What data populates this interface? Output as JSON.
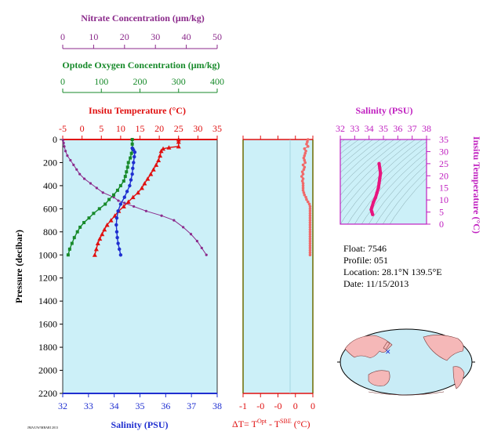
{
  "colors": {
    "nitrate": "#8b2a8b",
    "oxygen": "#178a2a",
    "temperature": "#e01010",
    "salinity": "#1f2fd0",
    "delta_t": "#f06a6a",
    "ts_curve": "#e8157f",
    "panel_bg": "#ccf0f8",
    "magenta_axis": "#c020c0",
    "olive_axis": "#6b6b00"
  },
  "texts": {
    "nitrate_title": "Nitrate Concentration (μm/kg)",
    "oxygen_title": "Optode Oxygen Concentration (μm/kg)",
    "temp_title": "Insitu Temperature (°C)",
    "salinity_bottom_title": "Salinity (PSU)",
    "pressure_title": "Pressure (decibar)",
    "ts_salinity_title": "Salinity (PSU)",
    "ts_temp_title": "Insitu Temperature (°C)",
    "delta_label": "ΔT= T",
    "delta_sup1": "Opt",
    "delta_mid": " - T",
    "delta_sup2": "SBE",
    "delta_unit": " (°C)",
    "small_credit": "JMA/UW/MBARI 2013"
  },
  "info": {
    "float": "Float:  7546",
    "profile": "Profile:  051",
    "location": "Location:  28.1°N  139.5°E",
    "date": "Date:  11/15/2013"
  },
  "chart_data": [
    {
      "type": "line",
      "name": "profiles",
      "pressure_ticks": [
        0,
        200,
        400,
        600,
        800,
        1000,
        1200,
        1400,
        1600,
        1800,
        2000,
        2200
      ],
      "pressure_range": [
        0,
        2200
      ],
      "nitrate_ticks": [
        0,
        10,
        20,
        30,
        40,
        50
      ],
      "nitrate_range": [
        0,
        50
      ],
      "oxygen_ticks": [
        0,
        100,
        200,
        300,
        400
      ],
      "oxygen_range": [
        0,
        400
      ],
      "temperature_ticks": [
        -5,
        0,
        5,
        10,
        15,
        20,
        25,
        30,
        35
      ],
      "temperature_range": [
        -5,
        35
      ],
      "salinity_ticks": [
        32,
        33,
        34,
        35,
        36,
        37,
        38
      ],
      "salinity_range": [
        32,
        38
      ],
      "series": [
        {
          "name": "nitrate",
          "points": [
            [
              0.1,
              5
            ],
            [
              0.3,
              30
            ],
            [
              0.5,
              60
            ],
            [
              0.9,
              100
            ],
            [
              1.5,
              140
            ],
            [
              2.5,
              180
            ],
            [
              3.5,
              220
            ],
            [
              4.5,
              260
            ],
            [
              5.5,
              300
            ],
            [
              7,
              340
            ],
            [
              9,
              380
            ],
            [
              11,
              420
            ],
            [
              13,
              460
            ],
            [
              16.5,
              500
            ],
            [
              18,
              530
            ],
            [
              20,
              550
            ],
            [
              23,
              580
            ],
            [
              27,
              620
            ],
            [
              32,
              660
            ],
            [
              36,
              700
            ],
            [
              39,
              760
            ],
            [
              41.5,
              820
            ],
            [
              43.5,
              880
            ],
            [
              45,
              940
            ],
            [
              46.5,
              1000
            ]
          ]
        },
        {
          "name": "oxygen",
          "points": [
            [
              180,
              0
            ],
            [
              180,
              40
            ],
            [
              181,
              80
            ],
            [
              178,
              120
            ],
            [
              175,
              160
            ],
            [
              170,
              200
            ],
            [
              168,
              240
            ],
            [
              165,
              280
            ],
            [
              162,
              320
            ],
            [
              158,
              360
            ],
            [
              150,
              400
            ],
            [
              142,
              440
            ],
            [
              132,
              480
            ],
            [
              120,
              520
            ],
            [
              110,
              560
            ],
            [
              95,
              600
            ],
            [
              80,
              640
            ],
            [
              68,
              680
            ],
            [
              55,
              720
            ],
            [
              45,
              760
            ],
            [
              38,
              800
            ],
            [
              30,
              850
            ],
            [
              24,
              900
            ],
            [
              18,
              950
            ],
            [
              14,
              1000
            ]
          ]
        },
        {
          "name": "temperature",
          "points": [
            [
              25.0,
              0
            ],
            [
              25.0,
              20
            ],
            [
              25.0,
              60
            ],
            [
              22.5,
              70
            ],
            [
              21.0,
              80
            ],
            [
              20.5,
              100
            ],
            [
              20.2,
              140
            ],
            [
              19.8,
              180
            ],
            [
              19.2,
              220
            ],
            [
              18.5,
              260
            ],
            [
              17.8,
              300
            ],
            [
              17.0,
              340
            ],
            [
              16.2,
              380
            ],
            [
              15.5,
              420
            ],
            [
              14.5,
              460
            ],
            [
              13.2,
              500
            ],
            [
              12.0,
              540
            ],
            [
              10.8,
              580
            ],
            [
              9.5,
              620
            ],
            [
              8.5,
              660
            ],
            [
              7.5,
              700
            ],
            [
              6.5,
              740
            ],
            [
              5.8,
              780
            ],
            [
              5.2,
              820
            ],
            [
              4.6,
              860
            ],
            [
              4.1,
              900
            ],
            [
              3.7,
              950
            ],
            [
              3.3,
              1000
            ]
          ]
        },
        {
          "name": "salinity",
          "points": [
            [
              34.7,
              75
            ],
            [
              34.75,
              90
            ],
            [
              34.8,
              110
            ],
            [
              34.78,
              150
            ],
            [
              34.75,
              200
            ],
            [
              34.72,
              250
            ],
            [
              34.7,
              300
            ],
            [
              34.65,
              350
            ],
            [
              34.6,
              400
            ],
            [
              34.5,
              450
            ],
            [
              34.4,
              500
            ],
            [
              34.25,
              560
            ],
            [
              34.15,
              620
            ],
            [
              34.1,
              680
            ],
            [
              34.08,
              740
            ],
            [
              34.1,
              800
            ],
            [
              34.12,
              850
            ],
            [
              34.15,
              900
            ],
            [
              34.2,
              950
            ],
            [
              34.25,
              1000
            ]
          ]
        }
      ]
    },
    {
      "type": "line",
      "name": "delta_t",
      "x_ticks": [
        "-1",
        "-0",
        "-0",
        "0",
        "0"
      ],
      "x_range": [
        -1,
        0
      ],
      "series": [
        {
          "name": "delta_t",
          "points": [
            [
              -0.07,
              0
            ],
            [
              -0.08,
              20
            ],
            [
              -0.09,
              40
            ],
            [
              -0.07,
              60
            ],
            [
              -0.12,
              80
            ],
            [
              -0.1,
              100
            ],
            [
              -0.11,
              120
            ],
            [
              -0.12,
              140
            ],
            [
              -0.13,
              160
            ],
            [
              -0.12,
              180
            ],
            [
              -0.11,
              200
            ],
            [
              -0.14,
              220
            ],
            [
              -0.12,
              240
            ],
            [
              -0.13,
              260
            ],
            [
              -0.15,
              280
            ],
            [
              -0.14,
              300
            ],
            [
              -0.16,
              320
            ],
            [
              -0.14,
              340
            ],
            [
              -0.15,
              360
            ],
            [
              -0.14,
              380
            ],
            [
              -0.14,
              400
            ],
            [
              -0.14,
              420
            ],
            [
              -0.14,
              440
            ],
            [
              -0.13,
              460
            ],
            [
              -0.12,
              480
            ],
            [
              -0.1,
              500
            ],
            [
              -0.09,
              520
            ],
            [
              -0.07,
              540
            ],
            [
              -0.05,
              560
            ],
            [
              -0.04,
              580
            ],
            [
              -0.04,
              600
            ],
            [
              -0.04,
              620
            ],
            [
              -0.04,
              640
            ],
            [
              -0.04,
              660
            ],
            [
              -0.04,
              680
            ],
            [
              -0.04,
              700
            ],
            [
              -0.04,
              720
            ],
            [
              -0.04,
              740
            ],
            [
              -0.04,
              760
            ],
            [
              -0.04,
              780
            ],
            [
              -0.04,
              800
            ],
            [
              -0.04,
              820
            ],
            [
              -0.04,
              840
            ],
            [
              -0.04,
              860
            ],
            [
              -0.04,
              880
            ],
            [
              -0.04,
              900
            ],
            [
              -0.04,
              920
            ],
            [
              -0.04,
              940
            ],
            [
              -0.04,
              960
            ],
            [
              -0.04,
              980
            ],
            [
              -0.04,
              1000
            ]
          ]
        }
      ]
    },
    {
      "type": "line",
      "name": "ts_diagram",
      "x_ticks": [
        32,
        33,
        34,
        35,
        36,
        37,
        38
      ],
      "x_range": [
        32,
        38
      ],
      "y_ticks": [
        0,
        5,
        10,
        15,
        20,
        25,
        30,
        35
      ],
      "y_range": [
        0,
        35
      ],
      "series": [
        {
          "name": "ts",
          "points": [
            [
              34.7,
              25
            ],
            [
              34.75,
              23
            ],
            [
              34.8,
              21
            ],
            [
              34.75,
              19
            ],
            [
              34.7,
              17
            ],
            [
              34.65,
              15
            ],
            [
              34.55,
              13
            ],
            [
              34.45,
              11
            ],
            [
              34.3,
              9
            ],
            [
              34.2,
              7
            ],
            [
              34.15,
              6
            ],
            [
              34.2,
              5
            ],
            [
              34.25,
              4
            ]
          ]
        }
      ]
    }
  ]
}
